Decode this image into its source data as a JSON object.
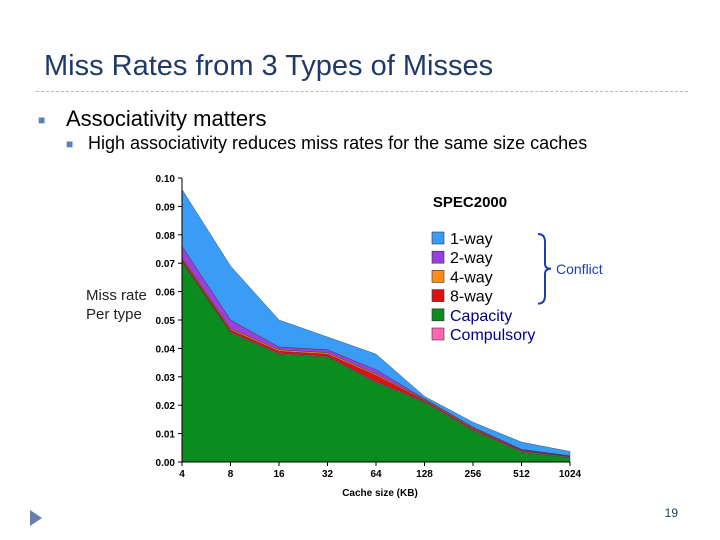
{
  "slide": {
    "title": "Miss Rates from 3 Types of Misses",
    "bullet1": "Associativity matters",
    "bullet2": "High associativity reduces miss rates for the same size caches",
    "side_label_line1": "Miss rate",
    "side_label_line2": "Per type",
    "page_number": "19",
    "bullet_icon": "square-bullet-icon",
    "corner_icon": "triangle-marker-icon"
  },
  "chart_data": {
    "type": "area",
    "stacked": true,
    "title": "SPEC2000",
    "xlabel": "Cache size (KB)",
    "ylabel": "",
    "categories": [
      "4",
      "8",
      "16",
      "32",
      "64",
      "128",
      "256",
      "512",
      "1024"
    ],
    "ylim": [
      0,
      0.1
    ],
    "yticks": [
      "0.00",
      "0.01",
      "0.02",
      "0.03",
      "0.04",
      "0.05",
      "0.06",
      "0.07",
      "0.08",
      "0.09",
      "0.10"
    ],
    "series": [
      {
        "name": "Capacity",
        "color": "#0a8c1e",
        "values": [
          0.0705,
          0.0455,
          0.038,
          0.037,
          0.028,
          0.021,
          0.011,
          0.0035,
          0.0015
        ]
      },
      {
        "name": "Compulsory",
        "color": "#ff66b3",
        "values": [
          0.0003,
          0.0003,
          0.0003,
          0.0003,
          0.0003,
          0.0003,
          0.0003,
          0.0003,
          0.0003
        ]
      },
      {
        "name": "8-way",
        "color": "#e01010",
        "values": [
          0.0007,
          0.0007,
          0.0007,
          0.0007,
          0.0022,
          0.0004,
          0.0004,
          0.0002,
          0.0001
        ]
      },
      {
        "name": "4-way",
        "color": "#ff8c1a",
        "values": [
          0.0005,
          0.0005,
          0.0005,
          0.0005,
          0.0005,
          0.0003,
          0.0003,
          0.0002,
          0.0001
        ]
      },
      {
        "name": "2-way",
        "color": "#9a3fe0",
        "values": [
          0.004,
          0.003,
          0.001,
          0.001,
          0.0015,
          0.0003,
          0.0003,
          0.0003,
          0.0002
        ]
      },
      {
        "name": "1-way",
        "color": "#3a9cf7",
        "values": [
          0.02,
          0.019,
          0.0095,
          0.0045,
          0.0055,
          0.0008,
          0.0017,
          0.0025,
          0.0015
        ]
      }
    ],
    "legend": {
      "items": [
        "1-way",
        "2-way",
        "4-way",
        "8-way",
        "Capacity",
        "Compulsory"
      ],
      "colors": [
        "#3a9cf7",
        "#9a3fe0",
        "#ff8c1a",
        "#e01010",
        "#0a8c1e",
        "#ff66b3"
      ],
      "text_colors": [
        "#000000",
        "#000000",
        "#000000",
        "#000000",
        "#000080",
        "#000080"
      ],
      "bracket_label": "Conflict",
      "bracket_color": "#1f3fb0"
    }
  }
}
